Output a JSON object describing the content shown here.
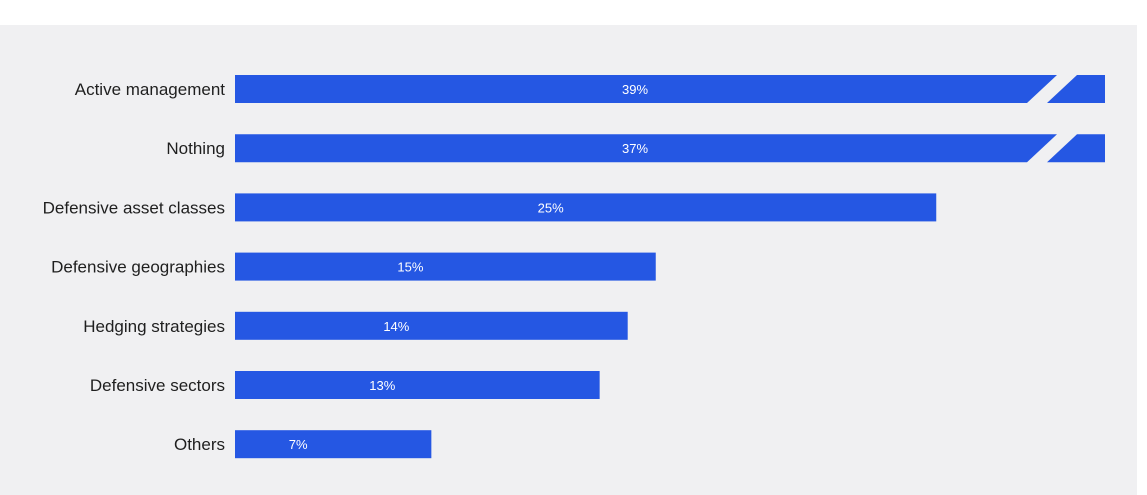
{
  "chart_data": {
    "type": "bar",
    "orientation": "horizontal",
    "categories": [
      "Active management",
      "Nothing",
      "Defensive asset classes",
      "Defensive geographies",
      "Hedging strategies",
      "Defensive sectors",
      "Others"
    ],
    "values": [
      39,
      37,
      25,
      15,
      14,
      13,
      7
    ],
    "value_labels": [
      "39%",
      "37%",
      "25%",
      "15%",
      "14%",
      "13%",
      "7%"
    ],
    "truncated": [
      true,
      true,
      false,
      false,
      false,
      false,
      false
    ],
    "axis_break_at": 31,
    "title": "",
    "xlabel": "",
    "ylabel": "",
    "grid": false,
    "legend": "none",
    "colors": {
      "bar": "#2557e3",
      "background": "#f0f0f2",
      "label": "#1f1f1f",
      "value_label": "#ffffff"
    }
  }
}
